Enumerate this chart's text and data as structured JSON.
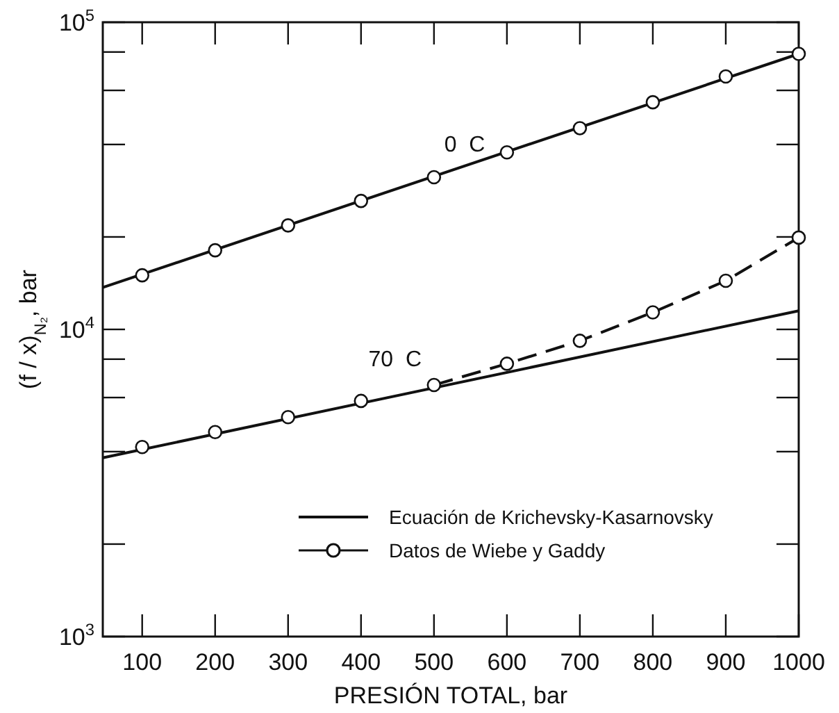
{
  "chart_data": {
    "type": "line",
    "xlabel": "PRESIÓN TOTAL, bar",
    "ylabel": "(f / x)$_{N₂}$, bar",
    "log": "y",
    "xlim": [
      46,
      1000
    ],
    "ylim": [
      1000,
      100000
    ],
    "xticks": [
      100,
      200,
      300,
      400,
      500,
      600,
      700,
      800,
      900,
      1000
    ],
    "yticks": [
      {
        "value": 1000,
        "label": "10$^{3}$"
      },
      {
        "value": 2000,
        "label": null
      },
      {
        "value": 4000,
        "label": null
      },
      {
        "value": 6000,
        "label": null
      },
      {
        "value": 8000,
        "label": null
      },
      {
        "value": 10000,
        "label": "10$^{4}$"
      },
      {
        "value": 20000,
        "label": null
      },
      {
        "value": 40000,
        "label": null
      },
      {
        "value": 60000,
        "label": null
      },
      {
        "value": 80000,
        "label": null
      },
      {
        "value": 100000,
        "label": "10$^{5}$"
      }
    ],
    "grid": false,
    "legend": "bottom right",
    "series": [
      {
        "name": "Ecuación de Krichevsky-Kasarnovsky",
        "type": "line",
        "color": "#111111",
        "x": [
          46,
          1000
        ],
        "values": [
          13700,
          78900
        ],
        "marker": "none",
        "line_style": "solid"
      },
      {
        "type": "line",
        "color": "#111111",
        "x": [
          46,
          1000
        ],
        "values": [
          3820,
          11500
        ],
        "marker": "none",
        "line_style": "solid"
      },
      {
        "name": "Datos de Wiebe y Gaddy",
        "type": "scatter",
        "color": "#111111",
        "x": [
          100,
          200,
          300,
          400,
          500,
          600,
          700,
          800,
          900,
          1000
        ],
        "values": [
          15000,
          18100,
          21800,
          26200,
          31300,
          37700,
          45200,
          54900,
          66600,
          78900
        ],
        "marker": "circle"
      },
      {
        "type": "line",
        "color": "#111111",
        "x": [
          500,
          600,
          700,
          800,
          900,
          1000
        ],
        "values": [
          6590,
          7730,
          9180,
          11360,
          14400,
          19900
        ],
        "marker": "none",
        "line_style": "dashed"
      },
      {
        "type": "scatter",
        "color": "#111111",
        "x": [
          100,
          200,
          300,
          400,
          500,
          600,
          700,
          800,
          900,
          1000
        ],
        "values": [
          4140,
          4630,
          5180,
          5850,
          6590,
          7730,
          9180,
          11360,
          14400,
          19900
        ],
        "marker": "circle"
      }
    ],
    "annotations": [
      "0  C",
      "70  C"
    ]
  }
}
